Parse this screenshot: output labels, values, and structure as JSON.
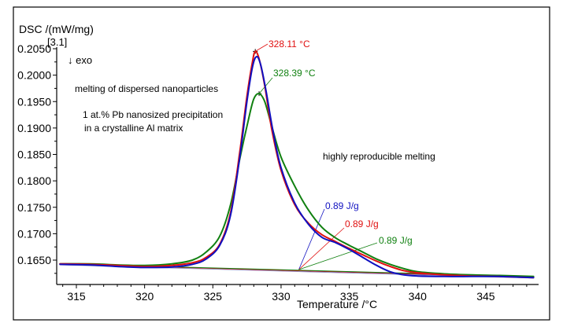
{
  "chart_data": {
    "type": "line",
    "title": "",
    "ylabel": "DSC /(mW/mg)",
    "ylabel_extra": "[3.1]",
    "xlabel": "Temperature /°C",
    "xlim": [
      313.8,
      348.8
    ],
    "ylim": [
      0.1617,
      0.205
    ],
    "xticks": [
      315,
      320,
      325,
      330,
      335,
      340,
      345
    ],
    "xtick_labels": [
      "315",
      "320",
      "325",
      "330",
      "335",
      "340",
      "345"
    ],
    "yticks": [
      0.205,
      0.2,
      0.195,
      0.19,
      0.185,
      0.18,
      0.175,
      0.17,
      0.165
    ],
    "ytick_labels": [
      "0.2050",
      "0.2000",
      "0.1950",
      "0.1900",
      "0.1850",
      "0.1800",
      "0.1750",
      "0.1700",
      "0.1650"
    ],
    "grid": false,
    "direction_marker": "↓ exo",
    "annotations": [
      {
        "text": "melting of dispersed nanoparticles",
        "color": "#000000"
      },
      {
        "text": "1 at.% Pb nanosized precipitation",
        "color": "#000000"
      },
      {
        "text": "in a crystalline Al matrix",
        "color": "#000000"
      },
      {
        "text": "highly reproducible melting",
        "color": "#000000"
      }
    ],
    "peak_labels": [
      {
        "series": "red",
        "text": "328.11 °C",
        "x": 328.11,
        "y": 0.2045,
        "color": "#e01010"
      },
      {
        "series": "green",
        "text": "328.39 °C",
        "x": 328.39,
        "y": 0.1965,
        "color": "#108010"
      }
    ],
    "area_labels": [
      {
        "series": "blue",
        "text": "0.89 J/g",
        "color": "#1010c0"
      },
      {
        "series": "red",
        "text": "0.89 J/g",
        "color": "#e01010"
      },
      {
        "series": "green",
        "text": "0.89 J/g",
        "color": "#108010"
      }
    ],
    "series": [
      {
        "name": "red",
        "color": "#e01010",
        "x": [
          313.8,
          316,
          318,
          320,
          322,
          323.5,
          324.5,
          325.5,
          326.3,
          327,
          327.5,
          327.9,
          328.11,
          328.4,
          328.8,
          329.3,
          330,
          331,
          332,
          333,
          334,
          335,
          336,
          337,
          338,
          339,
          340,
          342,
          344,
          346,
          348.5
        ],
        "y": [
          0.1643,
          0.1642,
          0.164,
          0.1638,
          0.164,
          0.1645,
          0.1655,
          0.168,
          0.174,
          0.186,
          0.196,
          0.2025,
          0.2045,
          0.203,
          0.198,
          0.19,
          0.182,
          0.1755,
          0.172,
          0.1698,
          0.1685,
          0.1672,
          0.166,
          0.1648,
          0.1638,
          0.163,
          0.1626,
          0.1622,
          0.162,
          0.1619,
          0.1617
        ]
      },
      {
        "name": "blue",
        "color": "#1010c0",
        "x": [
          313.8,
          316,
          318,
          320,
          322,
          323.5,
          324.5,
          325.5,
          326.3,
          327,
          327.5,
          327.9,
          328.2,
          328.5,
          328.9,
          329.4,
          330,
          331,
          332,
          333,
          334,
          335,
          336,
          337,
          338,
          339,
          340,
          342,
          344,
          346,
          348.5
        ],
        "y": [
          0.1642,
          0.1641,
          0.1638,
          0.1636,
          0.1637,
          0.1642,
          0.1652,
          0.1678,
          0.1735,
          0.185,
          0.195,
          0.2015,
          0.2035,
          0.202,
          0.197,
          0.1895,
          0.1825,
          0.1758,
          0.1718,
          0.1693,
          0.1683,
          0.167,
          0.1655,
          0.164,
          0.1628,
          0.1622,
          0.162,
          0.1619,
          0.1619,
          0.1619,
          0.1617
        ]
      },
      {
        "name": "green",
        "color": "#108010",
        "x": [
          313.8,
          316,
          318,
          320,
          322,
          323.5,
          324.5,
          325.5,
          326.3,
          327,
          327.6,
          328.0,
          328.39,
          328.8,
          329.3,
          330,
          331,
          332,
          333,
          334,
          335,
          336,
          337,
          338,
          339,
          340,
          342,
          344,
          346,
          348.5
        ],
        "y": [
          0.1643,
          0.1643,
          0.1641,
          0.164,
          0.1643,
          0.165,
          0.1665,
          0.1695,
          0.1755,
          0.1845,
          0.1915,
          0.1955,
          0.1965,
          0.195,
          0.1905,
          0.1845,
          0.179,
          0.1745,
          0.1712,
          0.1692,
          0.1678,
          0.1665,
          0.1652,
          0.1642,
          0.1634,
          0.1628,
          0.1624,
          0.1622,
          0.1621,
          0.1619
        ]
      }
    ],
    "baselines": [
      {
        "series": "blue",
        "color": "#1010c0",
        "x": [
          313.8,
          348.5
        ],
        "y": [
          0.1643,
          0.1617
        ]
      },
      {
        "series": "red",
        "color": "#e01010",
        "x": [
          313.8,
          348.5
        ],
        "y": [
          0.1642,
          0.1618
        ]
      },
      {
        "series": "green",
        "color": "#108010",
        "x": [
          313.8,
          348.5
        ],
        "y": [
          0.1643,
          0.1619
        ]
      },
      {
        "series": "grey",
        "color": "#9090c0",
        "x": [
          313.8,
          348.5
        ],
        "y": [
          0.1641,
          0.1616
        ]
      }
    ]
  }
}
